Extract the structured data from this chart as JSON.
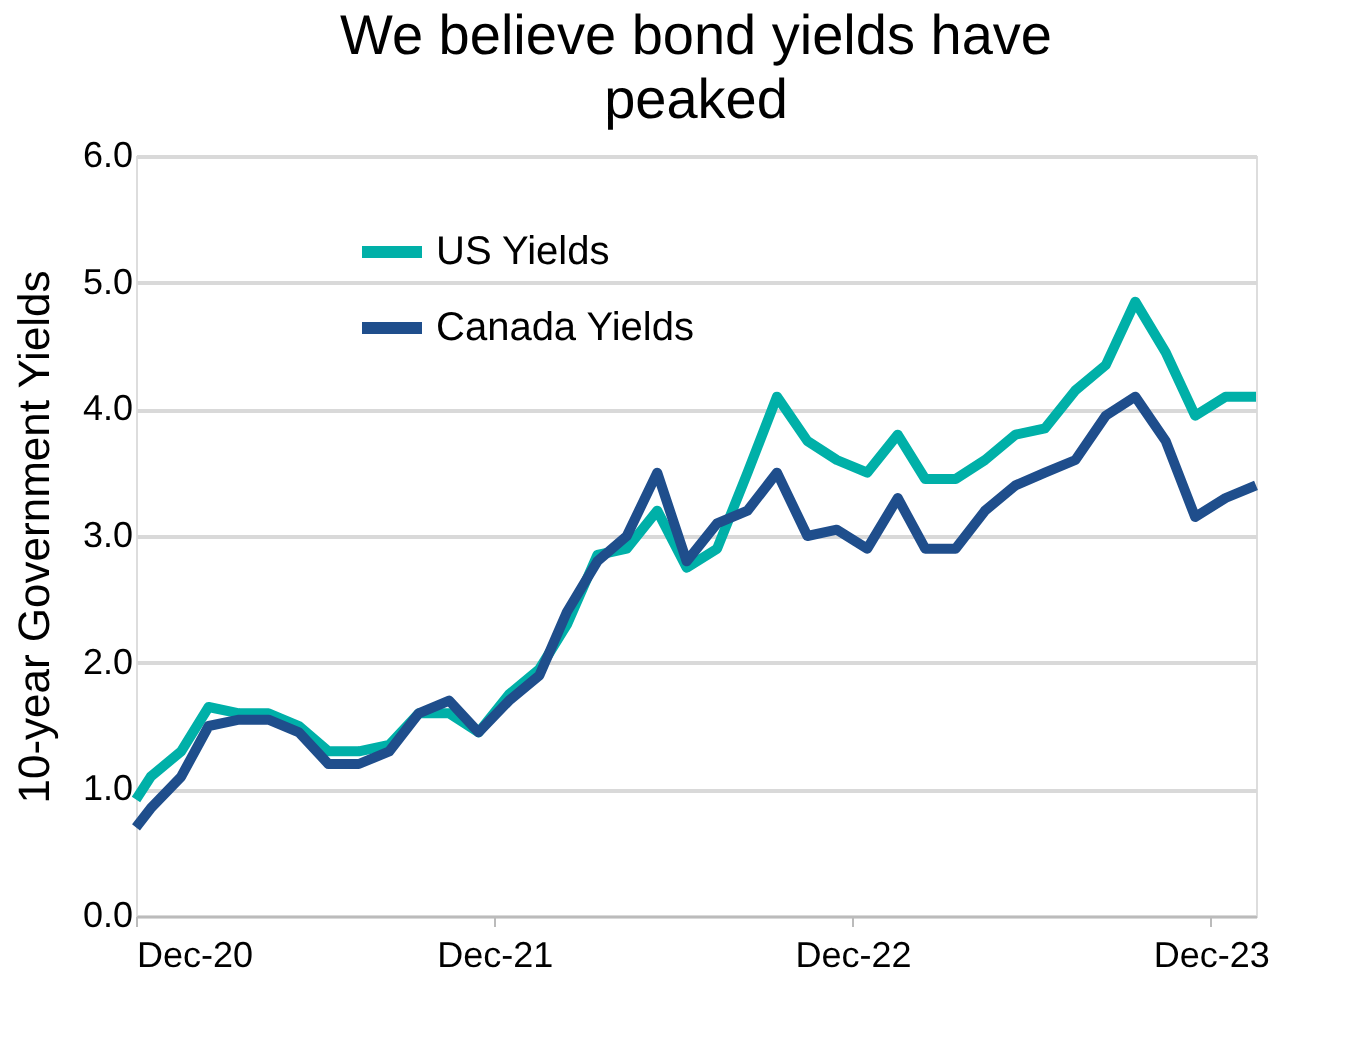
{
  "chart_data": {
    "type": "line",
    "title": "We believe bond yields have peaked",
    "ylabel": "10-year Government Yields",
    "x": [
      "2020-12-31",
      "2021-01-15",
      "2021-02-15",
      "2021-03-15",
      "2021-04-15",
      "2021-05-15",
      "2021-06-15",
      "2021-07-15",
      "2021-08-15",
      "2021-09-15",
      "2021-10-15",
      "2021-11-15",
      "2021-12-15",
      "2022-01-15",
      "2022-02-15",
      "2022-03-15",
      "2022-04-15",
      "2022-05-15",
      "2022-06-15",
      "2022-07-15",
      "2022-08-15",
      "2022-09-15",
      "2022-10-15",
      "2022-11-15",
      "2022-12-15",
      "2023-01-15",
      "2023-02-15",
      "2023-03-15",
      "2023-04-15",
      "2023-05-15",
      "2023-06-15",
      "2023-07-15",
      "2023-08-15",
      "2023-09-15",
      "2023-10-15",
      "2023-11-15",
      "2023-12-15",
      "2024-01-15",
      "2024-02-15"
    ],
    "series": [
      {
        "name": "US Yields",
        "color": "#00b0a8",
        "values": [
          0.92,
          1.1,
          1.3,
          1.65,
          1.6,
          1.6,
          1.5,
          1.3,
          1.3,
          1.35,
          1.6,
          1.6,
          1.45,
          1.75,
          1.95,
          2.3,
          2.85,
          2.9,
          3.2,
          2.75,
          2.9,
          3.5,
          4.1,
          3.75,
          3.6,
          3.5,
          3.8,
          3.45,
          3.45,
          3.6,
          3.8,
          3.85,
          4.15,
          4.35,
          4.85,
          4.45,
          3.95,
          4.1,
          4.1
        ]
      },
      {
        "name": "Canada Yields",
        "color": "#1f4e8c",
        "values": [
          0.7,
          0.85,
          1.1,
          1.5,
          1.55,
          1.55,
          1.45,
          1.2,
          1.2,
          1.3,
          1.6,
          1.7,
          1.45,
          1.7,
          1.9,
          2.4,
          2.8,
          3.0,
          3.5,
          2.8,
          3.1,
          3.2,
          3.5,
          3.0,
          3.05,
          2.9,
          3.3,
          2.9,
          2.9,
          3.2,
          3.4,
          3.5,
          3.6,
          3.95,
          4.1,
          3.75,
          3.15,
          3.3,
          3.4
        ]
      }
    ],
    "xlim": [
      "2020-12-31",
      "2024-02-15"
    ],
    "xticks": [
      {
        "value": "2020-12-31",
        "label": "Dec-20"
      },
      {
        "value": "2021-12-31",
        "label": "Dec-21"
      },
      {
        "value": "2022-12-31",
        "label": "Dec-22"
      },
      {
        "value": "2023-12-31",
        "label": "Dec-23"
      }
    ],
    "ylim": [
      0,
      6
    ],
    "yticks": [
      {
        "value": 0,
        "label": "0.0"
      },
      {
        "value": 1,
        "label": "1.0"
      },
      {
        "value": 2,
        "label": "2.0"
      },
      {
        "value": 3,
        "label": "3.0"
      },
      {
        "value": 4,
        "label": "4.0"
      },
      {
        "value": 5,
        "label": "5.0"
      },
      {
        "value": 6,
        "label": "6.0"
      }
    ],
    "grid": "y",
    "legend": "top",
    "line_style": "solid",
    "marker": "none"
  }
}
